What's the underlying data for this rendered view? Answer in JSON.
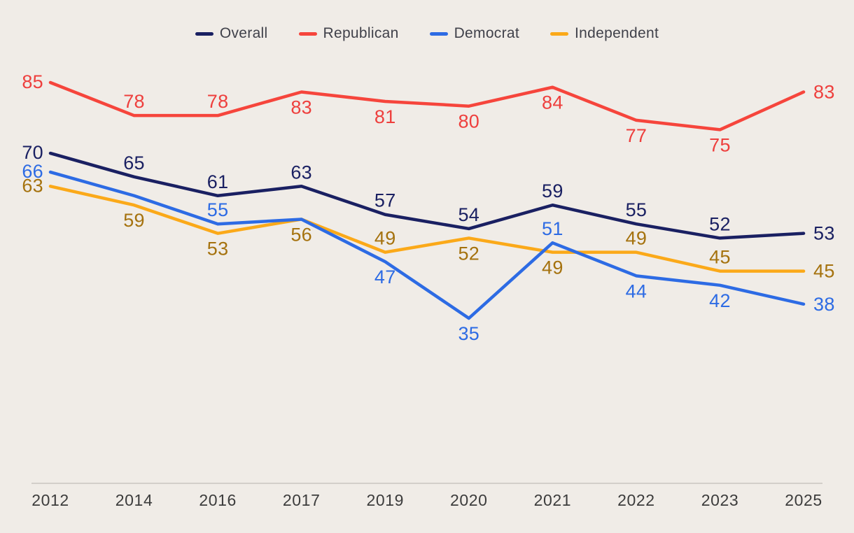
{
  "background_color": "#f0ece7",
  "legend": {
    "position": "top-center",
    "text_color": "#40414a"
  },
  "axis": {
    "line_color": "#c9c5c0",
    "label_color": "#3c3c3c"
  },
  "chart_data": {
    "type": "line",
    "title": "",
    "xlabel": "",
    "ylabel": "",
    "x_labels": [
      "2012",
      "2014",
      "2016",
      "2017",
      "2019",
      "2020",
      "2021",
      "2022",
      "2023",
      "2025"
    ],
    "ylim": [
      30,
      90
    ],
    "grid": false,
    "legend_position": "top-center",
    "series": [
      {
        "name": "Independent",
        "line_color": "#fba919",
        "label_color": "#a5720e",
        "values": [
          63,
          59,
          53,
          56,
          49,
          52,
          49,
          49,
          45,
          45
        ],
        "labels": [
          "63",
          "59",
          "53",
          "56",
          "49",
          "52",
          "49",
          "49",
          "45",
          "45"
        ],
        "label_placement": [
          "left",
          "below",
          "below",
          "below",
          "above",
          "below",
          "below",
          "above",
          "above",
          "right"
        ]
      },
      {
        "name": "Democrat",
        "line_color": "#2d6be4",
        "label_color": "#2d6be4",
        "values": [
          66,
          61,
          55,
          56,
          47,
          35,
          51,
          44,
          42,
          38
        ],
        "labels": [
          "66",
          "",
          "55",
          "",
          "47",
          "35",
          "51",
          "44",
          "42",
          "38"
        ],
        "label_placement": [
          "left",
          "none",
          "above",
          "none",
          "below",
          "below",
          "above",
          "below",
          "below",
          "right"
        ]
      },
      {
        "name": "Overall",
        "line_color": "#1a2062",
        "label_color": "#1a2062",
        "values": [
          70,
          65,
          61,
          63,
          57,
          54,
          59,
          55,
          52,
          53
        ],
        "labels": [
          "70",
          "65",
          "61",
          "63",
          "57",
          "54",
          "59",
          "55",
          "52",
          "53"
        ],
        "label_placement": [
          "left",
          "above",
          "above",
          "above",
          "above",
          "above",
          "above",
          "above",
          "above",
          "right"
        ]
      },
      {
        "name": "Republican",
        "line_color": "#f6453c",
        "label_color": "#ee3f3d",
        "values": [
          85,
          78,
          78,
          83,
          81,
          80,
          84,
          77,
          75,
          83
        ],
        "labels": [
          "85",
          "78",
          "78",
          "83",
          "81",
          "80",
          "84",
          "77",
          "75",
          "83"
        ],
        "label_placement": [
          "left",
          "above",
          "above",
          "below",
          "below",
          "below",
          "below",
          "below",
          "below",
          "right"
        ]
      }
    ],
    "legend_order": [
      "Overall",
      "Republican",
      "Democrat",
      "Independent"
    ]
  }
}
